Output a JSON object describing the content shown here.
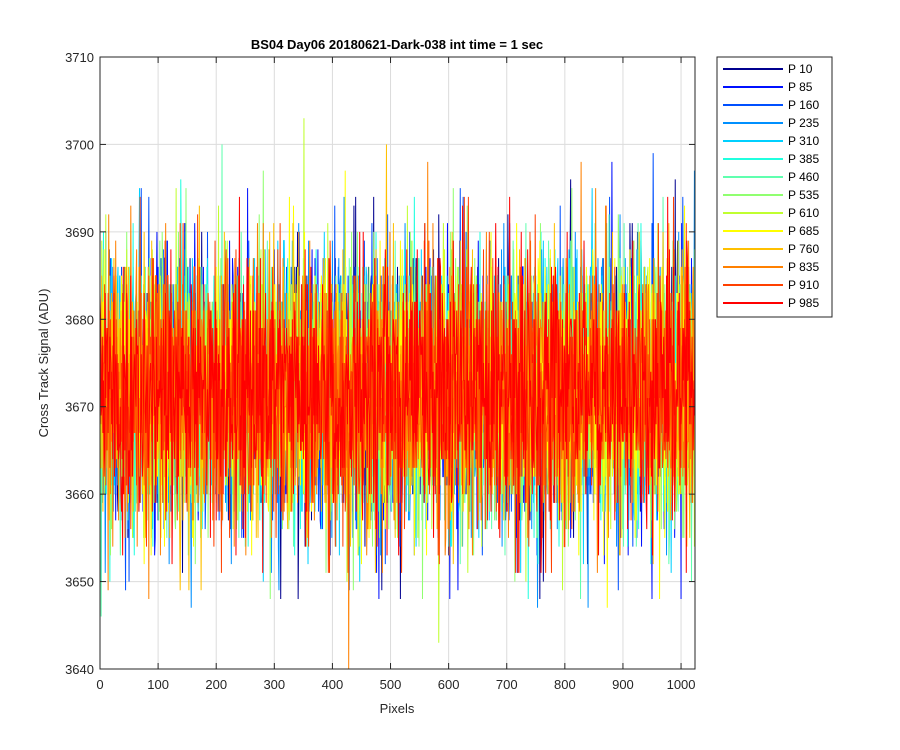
{
  "chart_data": {
    "type": "line",
    "title": "BS04 Day06 20180621-Dark-038 int time = 1 sec",
    "xlabel": "Pixels",
    "ylabel": "Cross Track Signal (ADU)",
    "xlim": [
      0,
      1024
    ],
    "ylim": [
      3640,
      3710
    ],
    "xticks": [
      0,
      100,
      200,
      300,
      400,
      500,
      600,
      700,
      800,
      900,
      1000
    ],
    "yticks": [
      3640,
      3650,
      3660,
      3670,
      3680,
      3690,
      3700,
      3710
    ],
    "grid": true,
    "legend_location": "outside-top-right",
    "series": [
      {
        "name": "P 10",
        "color": "#00008F",
        "mean": 3672,
        "min": 3648,
        "max": 3696
      },
      {
        "name": "P 85",
        "color": "#0010FF",
        "mean": 3672,
        "min": 3648,
        "max": 3698
      },
      {
        "name": "P 160",
        "color": "#0050FF",
        "mean": 3672,
        "min": 3649,
        "max": 3699
      },
      {
        "name": "P 235",
        "color": "#0090FF",
        "mean": 3672,
        "min": 3647,
        "max": 3697
      },
      {
        "name": "P 310",
        "color": "#00D0FF",
        "mean": 3672,
        "min": 3650,
        "max": 3695
      },
      {
        "name": "P 385",
        "color": "#20FFDF",
        "mean": 3672,
        "min": 3648,
        "max": 3696
      },
      {
        "name": "P 460",
        "color": "#60FFAF",
        "mean": 3672,
        "min": 3646,
        "max": 3700
      },
      {
        "name": "P 535",
        "color": "#90FF70",
        "mean": 3672,
        "min": 3648,
        "max": 3697
      },
      {
        "name": "P 610",
        "color": "#C0FF30",
        "mean": 3672,
        "min": 3643,
        "max": 3703
      },
      {
        "name": "P 685",
        "color": "#FFFF00",
        "mean": 3672,
        "min": 3647,
        "max": 3697
      },
      {
        "name": "P 760",
        "color": "#FFC000",
        "mean": 3672,
        "min": 3649,
        "max": 3700
      },
      {
        "name": "P 835",
        "color": "#FF8000",
        "mean": 3672,
        "min": 3640,
        "max": 3698
      },
      {
        "name": "P 910",
        "color": "#FF4000",
        "mean": 3672,
        "min": 3651,
        "max": 3694
      },
      {
        "name": "P 985",
        "color": "#FF0000",
        "mean": 3672,
        "min": 3651,
        "max": 3694
      }
    ]
  }
}
